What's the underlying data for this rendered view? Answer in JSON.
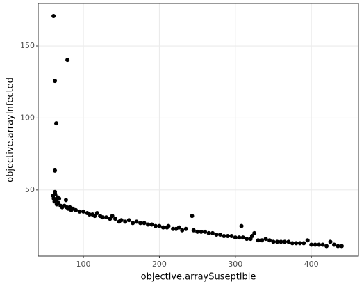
{
  "chart_data": {
    "type": "scatter",
    "x_label": "objective.arraySuseptible",
    "y_label": "objective.arrayInfected",
    "color": "#000000",
    "grid": true,
    "xlim": [
      40.5,
      462
    ],
    "ylim": [
      4,
      179.5
    ],
    "xticks": [
      100,
      200,
      300,
      400
    ],
    "yticks": [
      50,
      100,
      150
    ],
    "x": [
      60.7,
      79,
      62.5,
      64.3,
      62.5,
      62.5,
      60,
      61,
      62,
      63,
      64,
      65,
      66,
      67,
      68,
      70,
      72,
      75,
      77,
      78,
      80,
      82,
      84,
      86,
      90,
      95,
      100,
      105,
      108,
      112,
      115,
      118,
      122,
      125,
      130,
      135,
      138,
      142,
      147,
      150,
      155,
      160,
      165,
      170,
      175,
      180,
      185,
      190,
      195,
      200,
      205,
      210,
      212,
      218,
      222,
      226,
      230,
      235,
      243,
      245,
      250,
      255,
      260,
      265,
      270,
      275,
      280,
      285,
      290,
      295,
      300,
      305,
      308,
      310,
      315,
      320,
      322,
      325,
      330,
      335,
      340,
      345,
      350,
      355,
      360,
      365,
      370,
      375,
      380,
      385,
      390,
      395,
      400,
      405,
      410,
      415,
      420,
      425,
      430,
      435,
      440
    ],
    "values": [
      170.8,
      140.3,
      125.8,
      96.3,
      63.5,
      48.6,
      46,
      44,
      42,
      47,
      43,
      40,
      45,
      41,
      44,
      39,
      38,
      39,
      43,
      38,
      37,
      38,
      36,
      37,
      36,
      35,
      35,
      34,
      33,
      33,
      32,
      34,
      32,
      31,
      31,
      30,
      32,
      30,
      28,
      29,
      28,
      29,
      27,
      28,
      27,
      27,
      26,
      26,
      25,
      25,
      24,
      24,
      25,
      23,
      23,
      24,
      22,
      23,
      32,
      22,
      21,
      21,
      21,
      20,
      20,
      19,
      19,
      18,
      18,
      18,
      17,
      17,
      25,
      17,
      16,
      16,
      18,
      20,
      15,
      15,
      16,
      15,
      14,
      14,
      14,
      14,
      14,
      13,
      13,
      13,
      13,
      15,
      12,
      12,
      12,
      12,
      11,
      14,
      12,
      11,
      11
    ]
  }
}
